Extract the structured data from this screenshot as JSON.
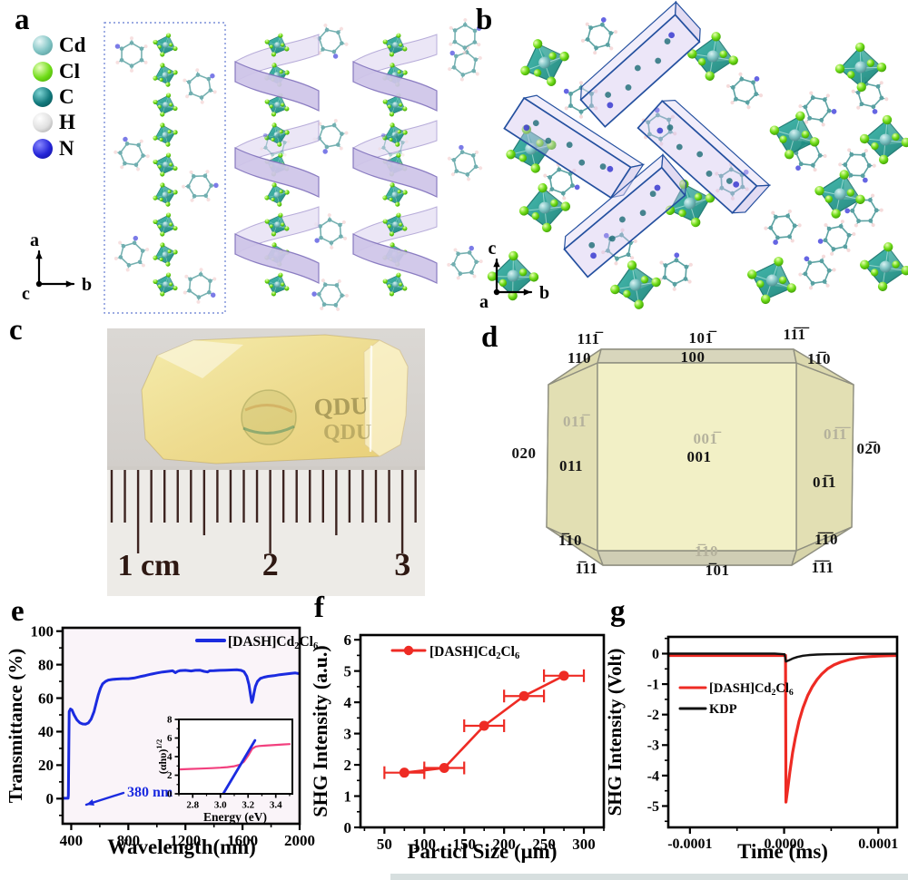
{
  "panels": {
    "a": {
      "letter": "a",
      "atoms": [
        {
          "symbol": "Cd",
          "color": "#7fc3c3",
          "light": "#e8f7f7",
          "dark": "#4c8f8f"
        },
        {
          "symbol": "Cl",
          "color": "#6fdc17",
          "light": "#eaffc0",
          "dark": "#3f9e06"
        },
        {
          "symbol": "C",
          "color": "#12797c",
          "light": "#7fd4d4",
          "dark": "#064a4c"
        },
        {
          "symbol": "H",
          "color": "#e0e0e0",
          "light": "#ffffff",
          "dark": "#9a9a9a"
        },
        {
          "symbol": "N",
          "color": "#2525d8",
          "light": "#8888ff",
          "dark": "#0d0d8f"
        }
      ],
      "axis_triad": {
        "up": "a",
        "right": "b",
        "origin": "c"
      }
    },
    "b": {
      "letter": "b",
      "axis_triad": {
        "up": "c",
        "right": "b",
        "origin": "a"
      }
    },
    "c": {
      "letter": "c",
      "ruler_labels": [
        "1 cm",
        "2",
        "3"
      ],
      "crystal_watermark": "QDU"
    },
    "d": {
      "letter": "d",
      "miller_indices": [
        {
          "text": "111̅",
          "tone": "black"
        },
        {
          "text": "101̅",
          "tone": "black"
        },
        {
          "text": "11̅1̅",
          "tone": "black"
        },
        {
          "text": "110",
          "tone": "black"
        },
        {
          "text": "100",
          "tone": "black"
        },
        {
          "text": "11̅0",
          "tone": "black"
        },
        {
          "text": "011̅",
          "tone": "gray"
        },
        {
          "text": "020",
          "tone": "black"
        },
        {
          "text": "011",
          "tone": "black"
        },
        {
          "text": "001̅",
          "tone": "gray"
        },
        {
          "text": "001",
          "tone": "black"
        },
        {
          "text": "01̅1̅",
          "tone": "gray"
        },
        {
          "text": "02̅0",
          "tone": "black"
        },
        {
          "text": "01̅1",
          "tone": "black"
        },
        {
          "text": "1̅10",
          "tone": "black"
        },
        {
          "text": "1̅10",
          "tone": "gray"
        },
        {
          "text": "1̅1̅0",
          "tone": "black"
        },
        {
          "text": "1̅11",
          "tone": "black"
        },
        {
          "text": "1̅01",
          "tone": "black"
        },
        {
          "text": "1̅1̅1",
          "tone": "black"
        }
      ]
    },
    "e": {
      "letter": "e"
    },
    "f": {
      "letter": "f"
    },
    "g": {
      "letter": "g"
    }
  },
  "chart_data": [
    {
      "id": "uv_vis",
      "type": "line",
      "xlabel": "Wavelength(nm)",
      "ylabel": "Transmittance (%)",
      "xlim": [
        340,
        2000
      ],
      "ylim": [
        -15,
        102
      ],
      "xticks": [
        400,
        800,
        1200,
        1600,
        2000
      ],
      "yticks": [
        0,
        20,
        40,
        60,
        80,
        100
      ],
      "legend": {
        "label": "[DASH]Cd₂Cl₆",
        "color": "#1b2be0"
      },
      "annotation": {
        "text": "380 nm",
        "color": "#1b2be0"
      },
      "series": [
        {
          "name": "[DASH]Cd₂Cl₆",
          "color": "#1b2be0",
          "width": 3,
          "points": [
            [
              340,
              0.2
            ],
            [
              378,
              0.2
            ],
            [
              380,
              2
            ],
            [
              383,
              30
            ],
            [
              386,
              52
            ],
            [
              395,
              53.5
            ],
            [
              405,
              53
            ],
            [
              420,
              50
            ],
            [
              440,
              47
            ],
            [
              460,
              45.3
            ],
            [
              480,
              44.6
            ],
            [
              500,
              44.5
            ],
            [
              520,
              45.2
            ],
            [
              540,
              47.5
            ],
            [
              560,
              52
            ],
            [
              575,
              57
            ],
            [
              590,
              62
            ],
            [
              605,
              66
            ],
            [
              620,
              68.5
            ],
            [
              640,
              70
            ],
            [
              660,
              70.8
            ],
            [
              690,
              71.2
            ],
            [
              720,
              71.4
            ],
            [
              760,
              71.6
            ],
            [
              800,
              71.6
            ],
            [
              840,
              72
            ],
            [
              880,
              72.8
            ],
            [
              920,
              73.5
            ],
            [
              960,
              74.3
            ],
            [
              1000,
              75
            ],
            [
              1040,
              75.6
            ],
            [
              1080,
              76
            ],
            [
              1110,
              76.3
            ],
            [
              1130,
              75.2
            ],
            [
              1145,
              76
            ],
            [
              1160,
              76.4
            ],
            [
              1200,
              76.6
            ],
            [
              1240,
              76.2
            ],
            [
              1270,
              76.6
            ],
            [
              1300,
              76.7
            ],
            [
              1330,
              76
            ],
            [
              1355,
              75.6
            ],
            [
              1370,
              76.3
            ],
            [
              1400,
              76.4
            ],
            [
              1440,
              76.6
            ],
            [
              1480,
              76.7
            ],
            [
              1520,
              76.8
            ],
            [
              1560,
              76.9
            ],
            [
              1590,
              76.6
            ],
            [
              1610,
              75.8
            ],
            [
              1630,
              73
            ],
            [
              1645,
              68
            ],
            [
              1658,
              61
            ],
            [
              1665,
              57.5
            ],
            [
              1672,
              59
            ],
            [
              1680,
              63
            ],
            [
              1690,
              67
            ],
            [
              1705,
              70
            ],
            [
              1725,
              71.8
            ],
            [
              1750,
              72.5
            ],
            [
              1780,
              73
            ],
            [
              1820,
              73.4
            ],
            [
              1860,
              74
            ],
            [
              1900,
              74.4
            ],
            [
              1940,
              74.8
            ],
            [
              1970,
              75
            ],
            [
              2000,
              74.6
            ]
          ]
        }
      ]
    },
    {
      "id": "tauc_inset",
      "type": "line",
      "xlabel": "Energy (eV)",
      "ylabel_base": "(αhυ)",
      "ylabel_sup": "1/2",
      "xlim": [
        2.7,
        3.52
      ],
      "ylim": [
        0,
        8
      ],
      "xticks": [
        2.8,
        3.0,
        3.2,
        3.4
      ],
      "xtick_labels": [
        "2.8",
        "3.0",
        "3.2",
        "3.4"
      ],
      "yticks": [
        0,
        2,
        4,
        6,
        8
      ],
      "series": [
        {
          "name": "tauc-curve",
          "color": "#f2407e",
          "width": 2.2,
          "points": [
            [
              2.7,
              2.62
            ],
            [
              2.78,
              2.67
            ],
            [
              2.86,
              2.71
            ],
            [
              2.94,
              2.76
            ],
            [
              3.0,
              2.81
            ],
            [
              3.05,
              2.87
            ],
            [
              3.1,
              2.97
            ],
            [
              3.14,
              3.12
            ],
            [
              3.17,
              3.45
            ],
            [
              3.2,
              4.1
            ],
            [
              3.23,
              4.85
            ],
            [
              3.255,
              5.08
            ],
            [
              3.28,
              5.14
            ],
            [
              3.32,
              5.18
            ],
            [
              3.36,
              5.22
            ],
            [
              3.4,
              5.26
            ],
            [
              3.45,
              5.31
            ],
            [
              3.5,
              5.35
            ]
          ]
        },
        {
          "name": "linear-fit",
          "color": "#1b2be0",
          "width": 2.8,
          "points": [
            [
              3.02,
              0
            ],
            [
              3.25,
              5.75
            ]
          ]
        }
      ]
    },
    {
      "id": "shg_particle",
      "type": "scatter-line",
      "xlabel": "Particl Size (μm)",
      "ylabel": "SHG Intensity (a.u.)",
      "xlim": [
        20,
        325
      ],
      "ylim": [
        0,
        6.15
      ],
      "xticks": [
        50,
        100,
        150,
        200,
        250,
        300
      ],
      "yticks": [
        0,
        1,
        2,
        3,
        4,
        5,
        6
      ],
      "legend": {
        "label": "[DASH]Cd₂Cl₆",
        "color": "#ee2b24"
      },
      "series": [
        {
          "name": "[DASH]Cd₂Cl₆",
          "color": "#ee2b24",
          "width": 2.6,
          "marker": "circle",
          "x": [
            75,
            125,
            175,
            225,
            275
          ],
          "y": [
            1.75,
            1.9,
            3.25,
            4.2,
            4.85
          ],
          "xerr": [
            25,
            25,
            25,
            25,
            25
          ]
        }
      ]
    },
    {
      "id": "shg_time",
      "type": "line",
      "xlabel": "Time (ms)",
      "ylabel": "SHG Intensity (Volt)",
      "xlim": [
        -0.000123,
        0.00012
      ],
      "ylim": [
        -5.7,
        0.55
      ],
      "xticks": [
        -0.0001,
        0,
        0.0001
      ],
      "xtick_labels": [
        "-0.0001",
        "0.0000",
        "0.0001"
      ],
      "yticks": [
        0,
        -1,
        -2,
        -3,
        -4,
        -5
      ],
      "legend_entries": [
        {
          "label": "[DASH]Cd₂Cl₆",
          "color": "#ee2b24"
        },
        {
          "label": "KDP",
          "color": "#111111"
        }
      ],
      "series": [
        {
          "name": "[DASH]Cd₂Cl₆",
          "color": "#ee2b24",
          "width": 3.2,
          "points": [
            [
              -0.000123,
              -0.06
            ],
            [
              -6e-05,
              -0.06
            ],
            [
              -2e-05,
              -0.06
            ],
            [
              -3e-06,
              -0.06
            ],
            [
              1.5e-06,
              -0.06
            ],
            [
              2e-06,
              -4.87
            ],
            [
              4e-06,
              -4.4
            ],
            [
              6e-06,
              -3.9
            ],
            [
              9e-06,
              -3.25
            ],
            [
              1.2e-05,
              -2.75
            ],
            [
              1.6e-05,
              -2.2
            ],
            [
              2e-05,
              -1.78
            ],
            [
              2.5e-05,
              -1.38
            ],
            [
              3e-05,
              -1.08
            ],
            [
              3.5e-05,
              -0.85
            ],
            [
              4e-05,
              -0.67
            ],
            [
              4.6e-05,
              -0.5
            ],
            [
              5.3e-05,
              -0.37
            ],
            [
              6e-05,
              -0.28
            ],
            [
              7e-05,
              -0.19
            ],
            [
              8e-05,
              -0.13
            ],
            [
              9e-05,
              -0.1
            ],
            [
              0.0001,
              -0.08
            ],
            [
              0.00011,
              -0.07
            ],
            [
              0.00012,
              -0.06
            ]
          ]
        },
        {
          "name": "KDP",
          "color": "#111111",
          "width": 2.4,
          "points": [
            [
              -0.000123,
              0
            ],
            [
              -1e-05,
              0
            ],
            [
              5e-07,
              -0.02
            ],
            [
              2e-06,
              -0.26
            ],
            [
              5e-06,
              -0.22
            ],
            [
              9e-06,
              -0.16
            ],
            [
              1.4e-05,
              -0.11
            ],
            [
              2e-05,
              -0.07
            ],
            [
              2.7e-05,
              -0.045
            ],
            [
              3.5e-05,
              -0.03
            ],
            [
              4.5e-05,
              -0.02
            ],
            [
              6e-05,
              -0.012
            ],
            [
              8e-05,
              -0.008
            ],
            [
              0.0001,
              -0.006
            ],
            [
              0.00012,
              -0.005
            ]
          ]
        }
      ]
    }
  ]
}
